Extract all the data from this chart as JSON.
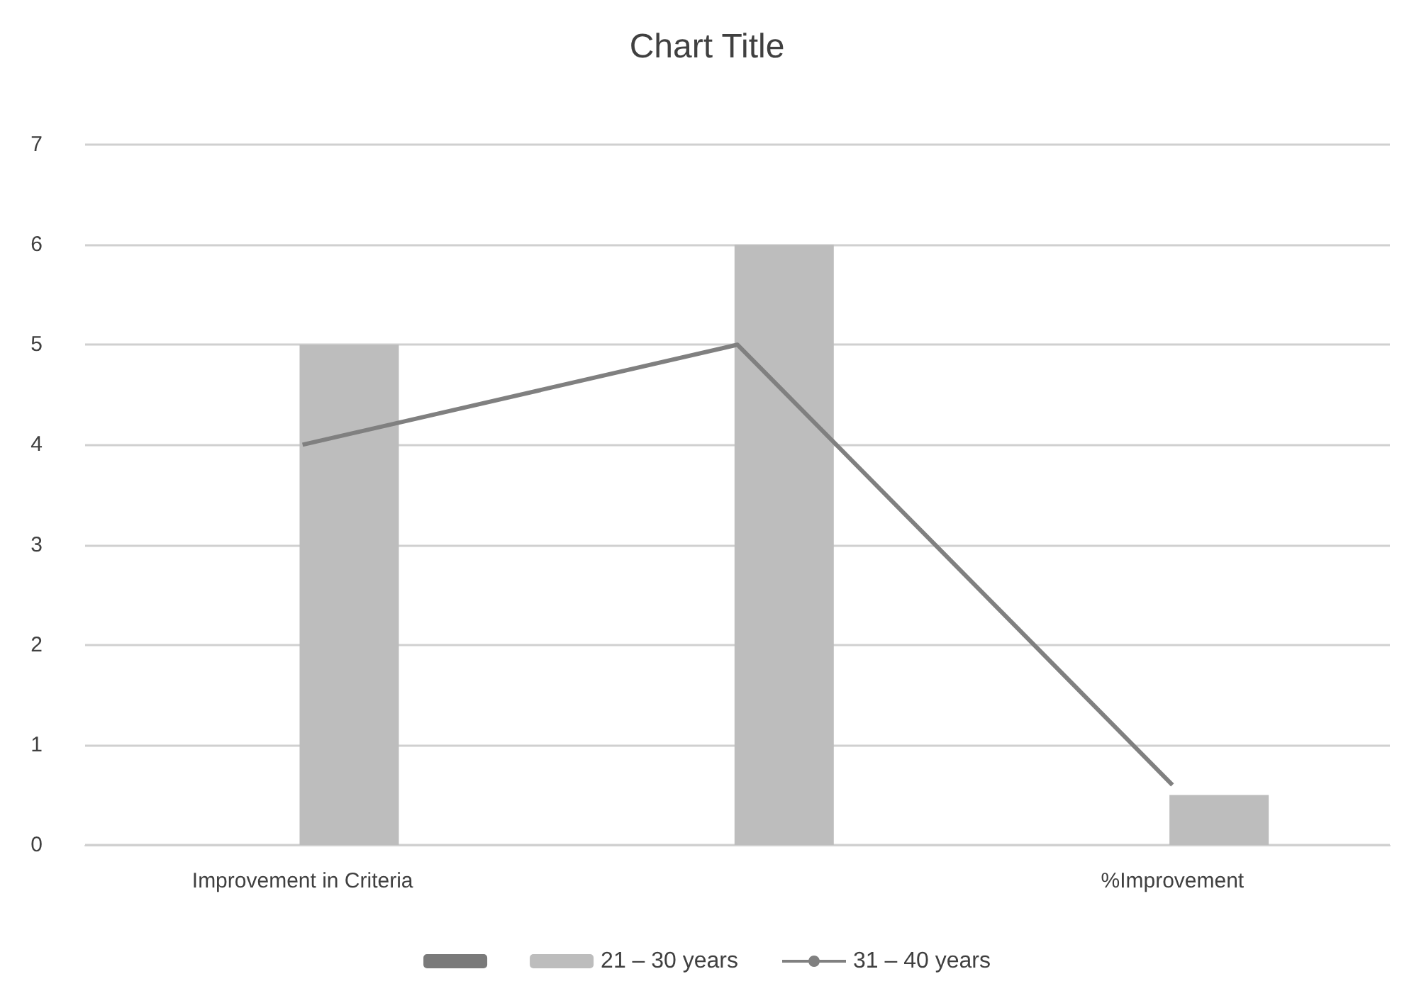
{
  "chart_data": {
    "type": "bar",
    "title": "Chart Title",
    "categories": [
      "Improvement in Criteria",
      null,
      "%Improvement"
    ],
    "series": [
      {
        "color": "#7a7a7a",
        "values": [
          null,
          null,
          null
        ]
      },
      {
        "name": "21 – 30 years",
        "color": "#bdbdbd",
        "values": [
          5,
          6,
          0.5
        ]
      },
      {
        "name": "31 – 40 years",
        "type": "line",
        "color": "#808080",
        "values": [
          4,
          5,
          0.6
        ]
      }
    ],
    "ylim": [
      0,
      7
    ],
    "yticks": [
      0,
      1,
      2,
      3,
      4,
      5,
      6,
      7
    ],
    "grid": "y",
    "legend": "bottom",
    "marker": "none"
  }
}
